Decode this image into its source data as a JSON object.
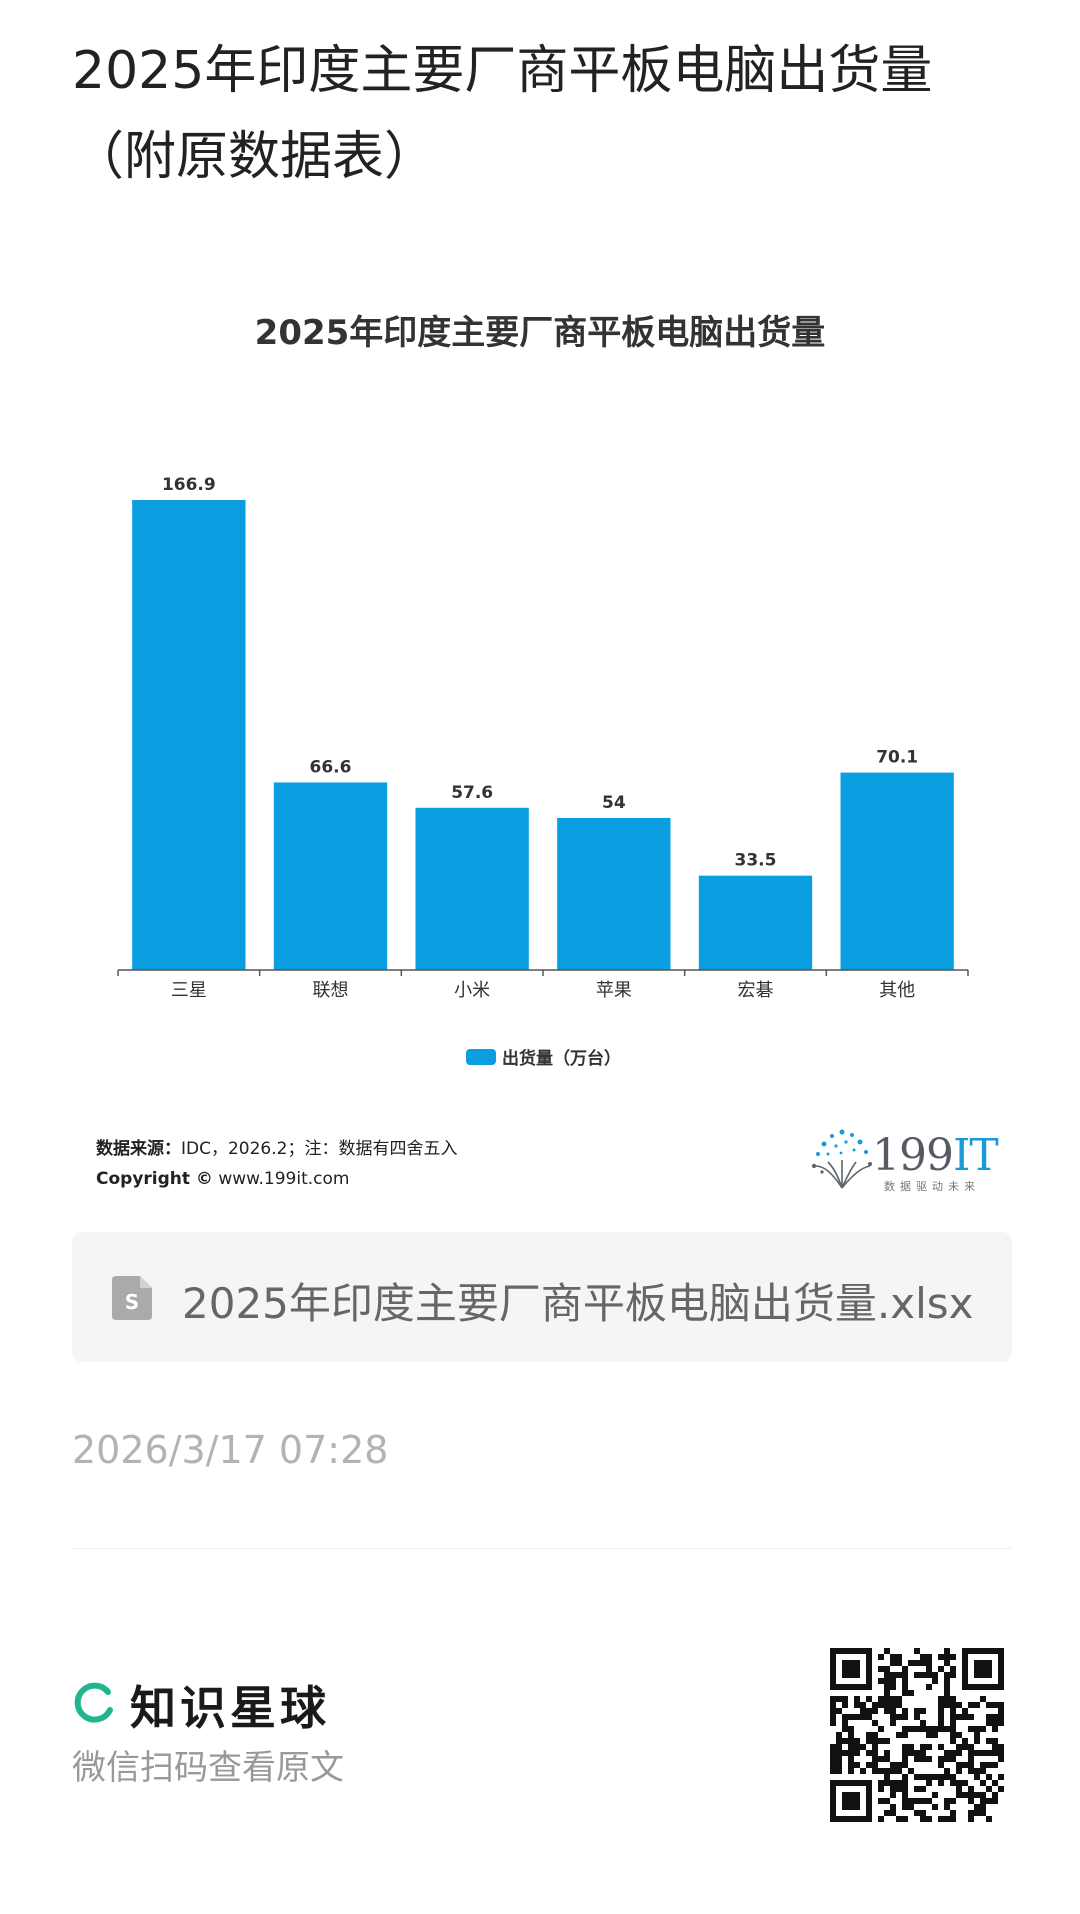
{
  "post": {
    "title": "2025年印度主要厂商平板电脑出货量（附原数据表）",
    "time": "2026/3/17 07:28"
  },
  "chart_data": {
    "type": "bar",
    "title": "2025年印度主要厂商平板电脑出货量",
    "categories": [
      "三星",
      "联想",
      "小米",
      "苹果",
      "宏碁",
      "其他"
    ],
    "series": [
      {
        "name": "出货量（万台）",
        "values": [
          166.9,
          66.6,
          57.6,
          54,
          33.5,
          70.1
        ]
      }
    ],
    "value_labels": [
      "166.9",
      "66.6",
      "57.6",
      "54",
      "33.5",
      "70.1"
    ],
    "ylim": [
      0,
      166.9
    ],
    "grid": false,
    "legend_position": "bottom-center",
    "bar_color": "#0a9de0"
  },
  "source": {
    "label": "数据来源：",
    "text": "IDC，2026.2；注：数据有四舍五入",
    "copyright_label": "Copyright ©",
    "copyright_text": "www.199it.com"
  },
  "brand": {
    "number": "199",
    "suffix": "IT",
    "slogan": "数据驱动未来",
    "accent": "#1a9ad6"
  },
  "file": {
    "icon": "spreadsheet-file-icon",
    "name": "2025年印度主要厂商平板电脑出货量.xlsx"
  },
  "footer": {
    "logo_icon": "zsxq-logo-icon",
    "app_name": "知识星球",
    "hint": "微信扫码查看原文",
    "accent": "#21b58f"
  }
}
